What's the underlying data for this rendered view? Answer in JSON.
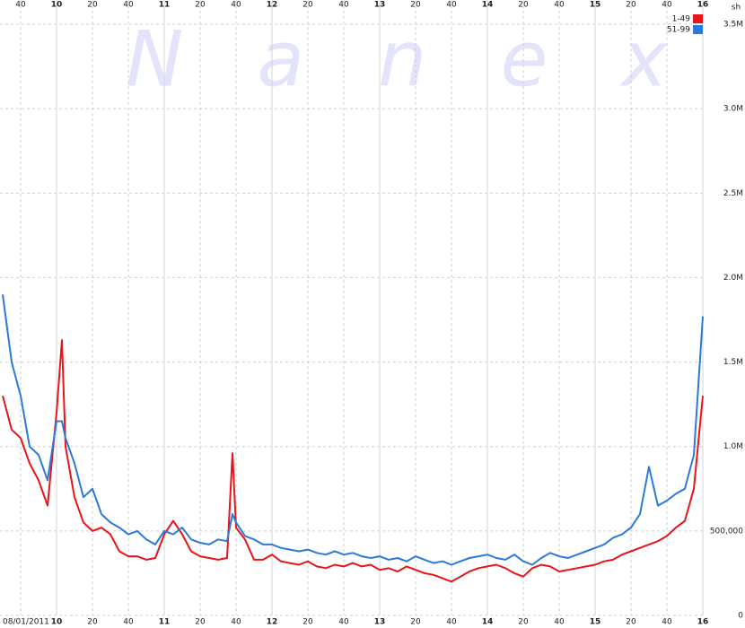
{
  "chart_data": {
    "type": "line",
    "watermark": "Nanex",
    "unit": "sh",
    "date": "08/01/2011",
    "x": [
      570,
      575,
      580,
      585,
      590,
      595,
      600,
      603,
      605,
      610,
      615,
      620,
      625,
      630,
      635,
      640,
      645,
      650,
      655,
      660,
      665,
      670,
      675,
      680,
      685,
      690,
      695,
      698,
      700,
      705,
      710,
      715,
      720,
      725,
      730,
      735,
      740,
      745,
      750,
      755,
      760,
      765,
      770,
      775,
      780,
      785,
      790,
      795,
      800,
      805,
      810,
      815,
      820,
      825,
      830,
      835,
      840,
      845,
      850,
      855,
      860,
      865,
      870,
      875,
      880,
      885,
      890,
      895,
      900,
      905,
      910,
      915,
      920,
      925,
      930,
      935,
      940,
      945,
      950,
      955,
      960
    ],
    "series": [
      {
        "name": "1-49",
        "color": "#e8141a",
        "values": [
          1300000,
          1100000,
          1050000,
          900000,
          800000,
          650000,
          1200000,
          1630000,
          1000000,
          700000,
          550000,
          500000,
          520000,
          480000,
          380000,
          350000,
          350000,
          330000,
          340000,
          480000,
          560000,
          480000,
          380000,
          350000,
          340000,
          330000,
          340000,
          960000,
          520000,
          450000,
          330000,
          330000,
          360000,
          320000,
          310000,
          300000,
          320000,
          290000,
          280000,
          300000,
          290000,
          310000,
          290000,
          300000,
          270000,
          280000,
          260000,
          290000,
          270000,
          250000,
          240000,
          220000,
          200000,
          230000,
          260000,
          280000,
          290000,
          300000,
          280000,
          250000,
          230000,
          280000,
          300000,
          290000,
          260000,
          270000,
          280000,
          290000,
          300000,
          320000,
          330000,
          360000,
          380000,
          400000,
          420000,
          440000,
          470000,
          520000,
          560000,
          750000,
          1300000
        ]
      },
      {
        "name": "51-99",
        "color": "#2a7ad8",
        "values": [
          1900000,
          1500000,
          1300000,
          1000000,
          950000,
          800000,
          1150000,
          1150000,
          1050000,
          900000,
          700000,
          750000,
          600000,
          550000,
          520000,
          480000,
          500000,
          450000,
          420000,
          500000,
          480000,
          520000,
          450000,
          430000,
          420000,
          450000,
          440000,
          600000,
          550000,
          470000,
          450000,
          420000,
          420000,
          400000,
          390000,
          380000,
          390000,
          370000,
          360000,
          380000,
          360000,
          370000,
          350000,
          340000,
          350000,
          330000,
          340000,
          320000,
          350000,
          330000,
          310000,
          320000,
          300000,
          320000,
          340000,
          350000,
          360000,
          340000,
          330000,
          360000,
          320000,
          300000,
          340000,
          370000,
          350000,
          340000,
          360000,
          380000,
          400000,
          420000,
          460000,
          480000,
          520000,
          600000,
          880000,
          650000,
          680000,
          720000,
          750000,
          950000,
          1770000
        ]
      }
    ],
    "xlim": [
      570,
      960
    ],
    "xticks": [
      {
        "value": 580,
        "label": "40"
      },
      {
        "value": 600,
        "label": "10"
      },
      {
        "value": 620,
        "label": "20"
      },
      {
        "value": 640,
        "label": "40"
      },
      {
        "value": 660,
        "label": "11"
      },
      {
        "value": 680,
        "label": "20"
      },
      {
        "value": 700,
        "label": "40"
      },
      {
        "value": 720,
        "label": "12"
      },
      {
        "value": 740,
        "label": "20"
      },
      {
        "value": 760,
        "label": "40"
      },
      {
        "value": 780,
        "label": "13"
      },
      {
        "value": 800,
        "label": "20"
      },
      {
        "value": 820,
        "label": "40"
      },
      {
        "value": 840,
        "label": "14"
      },
      {
        "value": 860,
        "label": "20"
      },
      {
        "value": 880,
        "label": "40"
      },
      {
        "value": 900,
        "label": "15"
      },
      {
        "value": 920,
        "label": "20"
      },
      {
        "value": 940,
        "label": "40"
      },
      {
        "value": 960,
        "label": "16"
      }
    ],
    "ylim": [
      0,
      3500000
    ],
    "yticks": [
      0,
      {
        "value": 500000,
        "label": "500,000"
      },
      {
        "value": 1000000,
        "label": "1.0M"
      },
      {
        "value": 1500000,
        "label": "1.5M"
      },
      {
        "value": 2000000,
        "label": "2.0M"
      },
      {
        "value": 2500000,
        "label": "2.5M"
      },
      {
        "value": 3000000,
        "label": "3.0M"
      },
      {
        "value": 3500000,
        "label": "3.5M"
      }
    ],
    "grid": true,
    "legend": "top-right"
  }
}
